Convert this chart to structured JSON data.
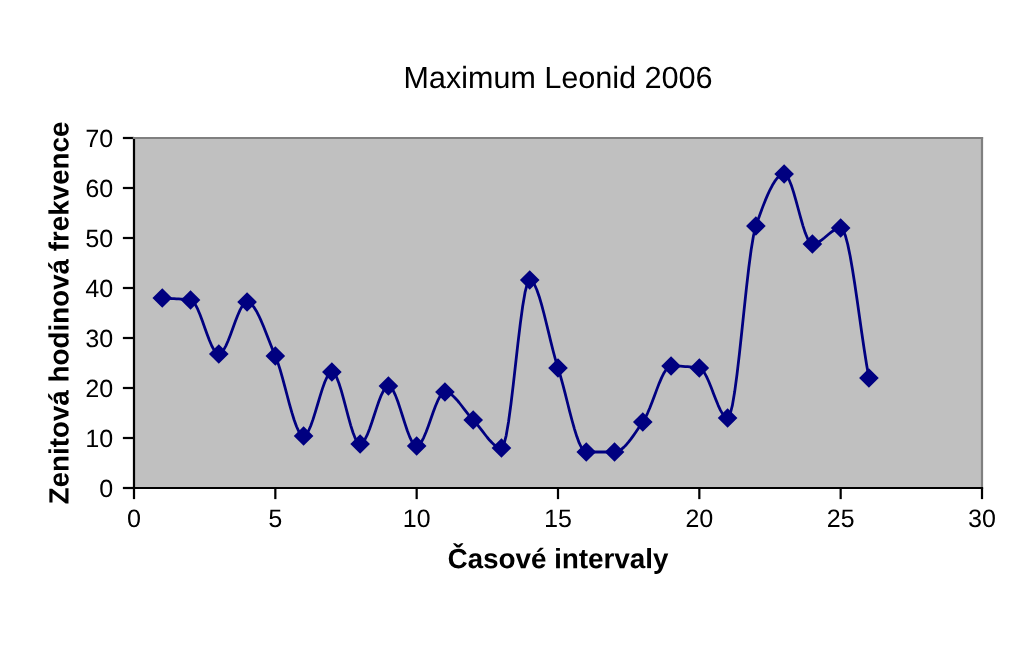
{
  "chart_data": {
    "type": "line",
    "title": "Maximum Leonid 2006",
    "xlabel": "Časové intervaly",
    "ylabel": "Zenitová hodinová frekvence",
    "x": [
      1,
      2,
      3,
      4,
      5,
      6,
      7,
      8,
      9,
      10,
      11,
      12,
      13,
      14,
      15,
      16,
      17,
      18,
      19,
      20,
      21,
      22,
      23,
      24,
      25,
      26
    ],
    "series": [
      {
        "color": "#000080",
        "values": [
          38,
          37.6,
          26.8,
          37.2,
          26.4,
          10.4,
          23.2,
          8.8,
          20.4,
          8.4,
          19.2,
          13.6,
          8,
          41.6,
          24,
          7.2,
          7.2,
          13.2,
          24.4,
          24,
          14,
          52.4,
          62.8,
          48.8,
          52,
          22
        ]
      }
    ],
    "xlim": [
      0,
      30
    ],
    "xticks": [
      0,
      5,
      10,
      15,
      20,
      25,
      30
    ],
    "ylim": [
      0,
      70
    ],
    "yticks": [
      0,
      10,
      20,
      30,
      40,
      50,
      60,
      70
    ],
    "grid": false,
    "legend": false,
    "marker": "diamond",
    "line_style": "solid"
  }
}
